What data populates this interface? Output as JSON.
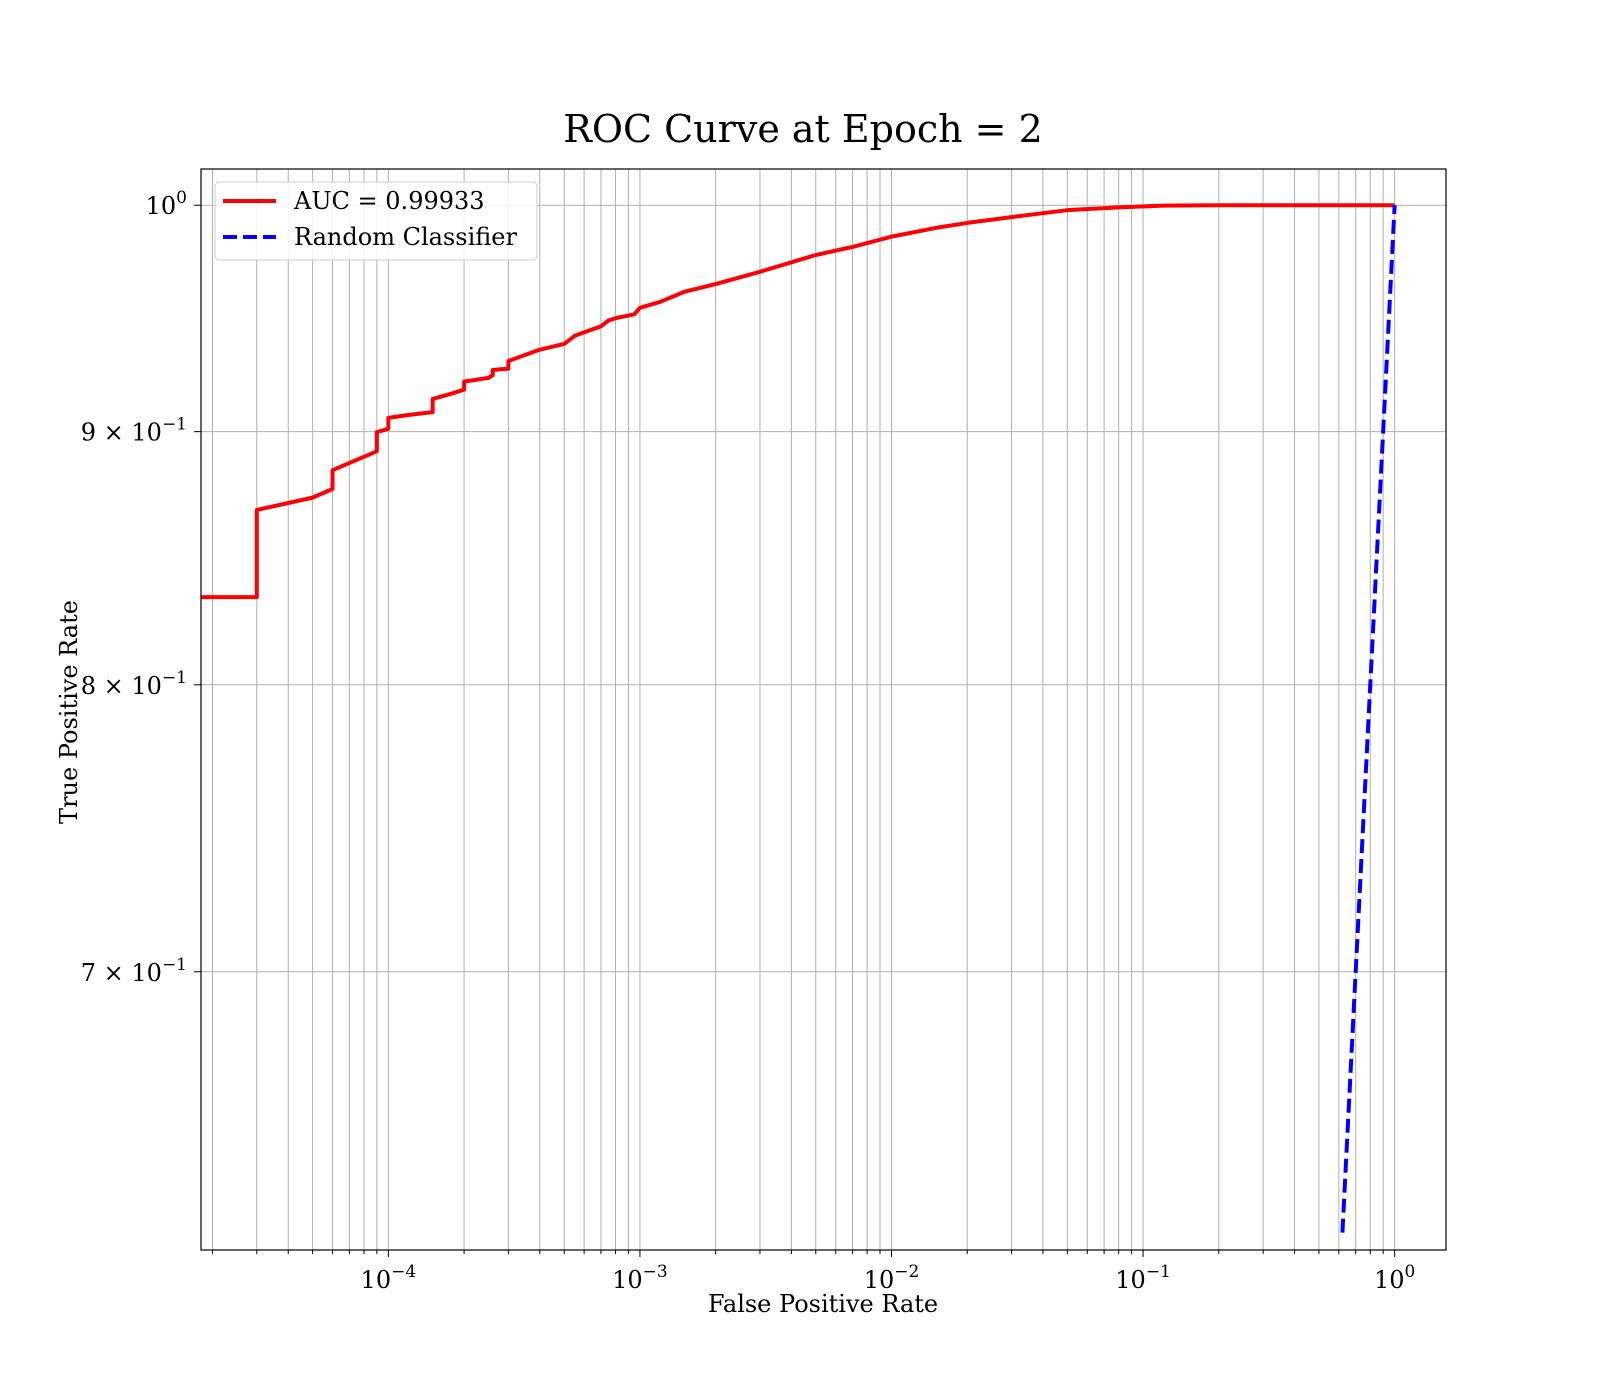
{
  "chart_data": {
    "type": "line",
    "title": "ROC Curve at Epoch = 2",
    "xlabel": "False Positive Rate",
    "ylabel": "True Positive Rate",
    "xscale": "log",
    "yscale": "log",
    "xlim": [
      1.8e-05,
      1.6
    ],
    "ylim": [
      0.615,
      1.017
    ],
    "grid": "on (major and minor, both axes)",
    "legend_placement": "top-left",
    "x_ticks": [
      {
        "value": 0.0001,
        "mantissa": "10",
        "exponent": "−4"
      },
      {
        "value": 0.001,
        "mantissa": "10",
        "exponent": "−3"
      },
      {
        "value": 0.01,
        "mantissa": "10",
        "exponent": "−2"
      },
      {
        "value": 0.1,
        "mantissa": "10",
        "exponent": "−1"
      },
      {
        "value": 1,
        "mantissa": "10",
        "exponent": "0"
      }
    ],
    "y_ticks": [
      {
        "value": 1.0,
        "mantissa": "10",
        "exponent": "0"
      },
      {
        "value": 0.9,
        "mantissa": "9 × 10",
        "exponent": "−1"
      },
      {
        "value": 0.8,
        "mantissa": "8 × 10",
        "exponent": "−1"
      },
      {
        "value": 0.7,
        "mantissa": "7 × 10",
        "exponent": "−1"
      }
    ],
    "series": [
      {
        "name": "AUC = 0.99933",
        "color": "#ff0000",
        "style": "solid",
        "x": [
          1.8e-05,
          3e-05,
          3e-05,
          5e-05,
          6e-05,
          6e-05,
          9e-05,
          9e-05,
          0.0001,
          0.0001,
          0.00012,
          0.00015,
          0.00015,
          0.00018,
          0.0002,
          0.0002,
          0.00025,
          0.00026,
          0.00026,
          0.0003,
          0.0003,
          0.0004,
          0.0005,
          0.00055,
          0.0006,
          0.0007,
          0.00075,
          0.0008,
          0.00095,
          0.001,
          0.0012,
          0.0015,
          0.002,
          0.003,
          0.004,
          0.005,
          0.007,
          0.01,
          0.015,
          0.02,
          0.03,
          0.05,
          0.08,
          0.12,
          0.2,
          0.5,
          1.0
        ],
        "y": [
          0.8333,
          0.8333,
          0.8678,
          0.8728,
          0.8763,
          0.884,
          0.8918,
          0.8998,
          0.9012,
          0.9058,
          0.907,
          0.9082,
          0.9138,
          0.9162,
          0.9178,
          0.9212,
          0.9228,
          0.924,
          0.9262,
          0.9268,
          0.9301,
          0.935,
          0.9375,
          0.941,
          0.9426,
          0.9452,
          0.9478,
          0.9488,
          0.9505,
          0.9534,
          0.956,
          0.9605,
          0.964,
          0.9695,
          0.9738,
          0.9771,
          0.9808,
          0.9855,
          0.9895,
          0.9918,
          0.9945,
          0.9977,
          0.999,
          0.9998,
          1.0,
          1.0,
          1.0
        ]
      },
      {
        "name": "Random Classifier",
        "color": "#0000ff",
        "style": "dashed",
        "x": [
          0.62,
          0.7,
          0.8,
          0.9,
          1.0
        ],
        "y": [
          0.62,
          0.7,
          0.8,
          0.9,
          1.0
        ]
      }
    ]
  }
}
